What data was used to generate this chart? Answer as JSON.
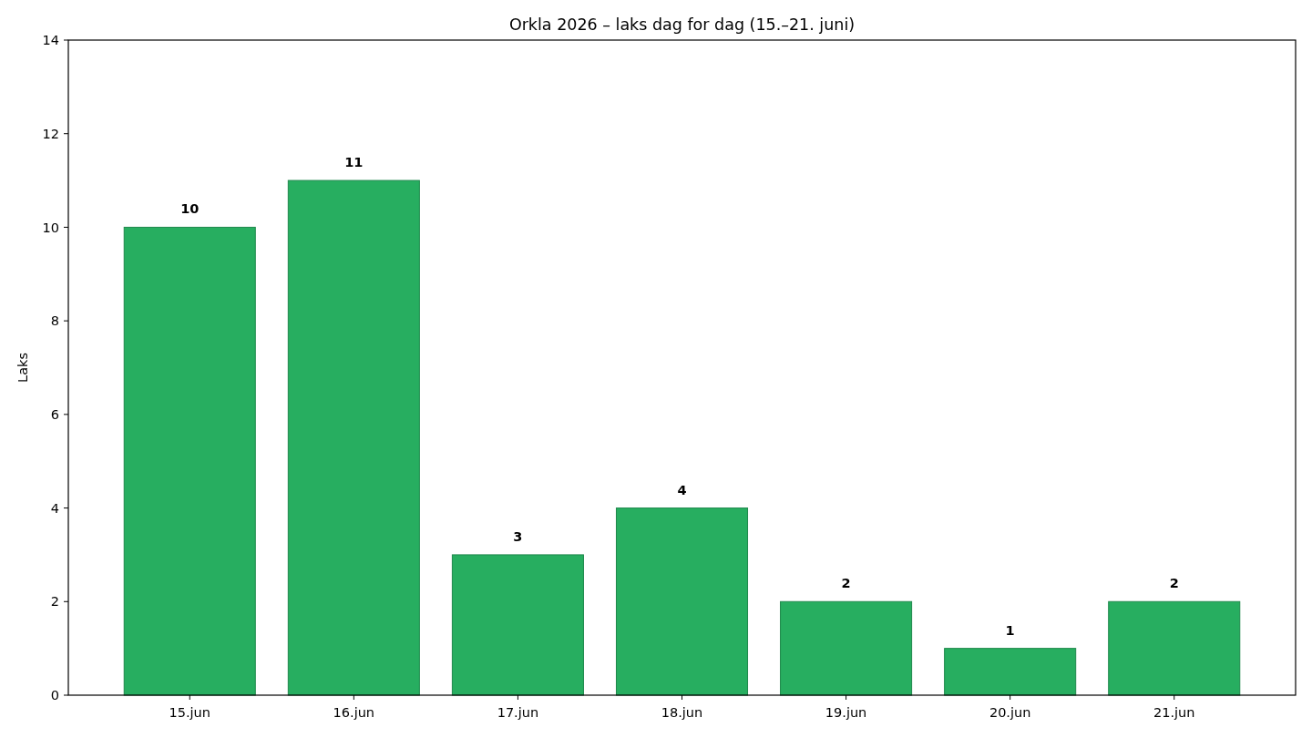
{
  "chart_data": {
    "type": "bar",
    "title": "Orkla 2026 – laks dag for dag (15.–21. juni)",
    "ylabel": "Laks",
    "categories": [
      "15.jun",
      "16.jun",
      "17.jun",
      "18.jun",
      "19.jun",
      "20.jun",
      "21.jun"
    ],
    "values": [
      10,
      11,
      3,
      4,
      2,
      1,
      2
    ],
    "color": "#27ae60",
    "ylim": [
      0,
      14
    ],
    "yticks": [
      0,
      2,
      4,
      6,
      8,
      10,
      12,
      14
    ],
    "data_labels": true
  }
}
